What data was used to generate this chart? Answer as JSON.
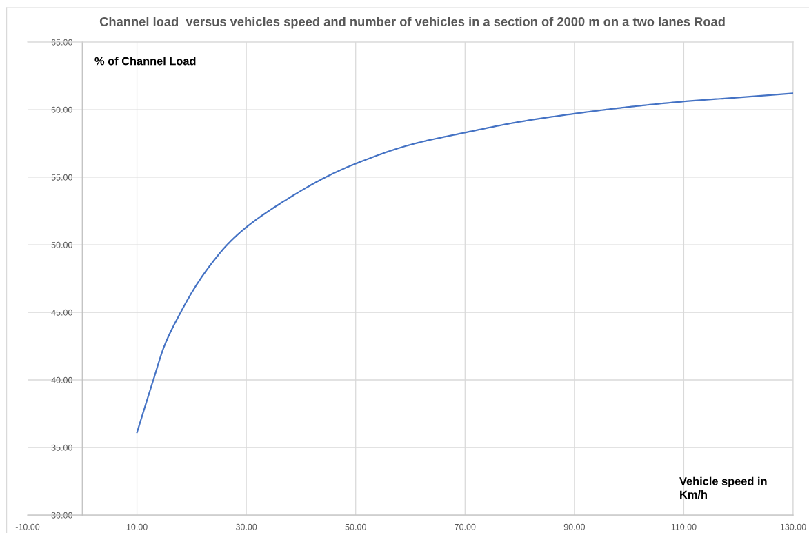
{
  "chart_data": {
    "type": "line",
    "title": "Channel load  versus vehicles speed and number of vehicles in a section of 2000 m on a two lanes Road",
    "xlabel": "Vehicle speed in\nKm/h",
    "ylabel": "% of Channel Load",
    "x": [
      10,
      13,
      15,
      18,
      21,
      24,
      26.5,
      30,
      36,
      45,
      50,
      60,
      70,
      80,
      90,
      100,
      110,
      120,
      130
    ],
    "series": [
      {
        "color": "#4472c4",
        "values": [
          36.1,
          40.0,
          42.5,
          45.0,
          47.1,
          48.8,
          50.0,
          51.3,
          53.0,
          55.1,
          56.0,
          57.4,
          58.3,
          59.1,
          59.7,
          60.2,
          60.6,
          60.9,
          61.2
        ]
      }
    ],
    "xlim": [
      -10,
      130
    ],
    "ylim": [
      30,
      65
    ],
    "xticks": [
      {
        "value": -10,
        "label": "-10.00"
      },
      {
        "value": 10,
        "label": "10.00"
      },
      {
        "value": 30,
        "label": "30.00"
      },
      {
        "value": 50,
        "label": "50.00"
      },
      {
        "value": 70,
        "label": "70.00"
      },
      {
        "value": 90,
        "label": "90.00"
      },
      {
        "value": 110,
        "label": "110.00"
      },
      {
        "value": 130,
        "label": "130.00"
      }
    ],
    "yticks": [
      {
        "value": 30,
        "label": "30.00"
      },
      {
        "value": 35,
        "label": "35.00"
      },
      {
        "value": 40,
        "label": "40.00"
      },
      {
        "value": 45,
        "label": "45.00"
      },
      {
        "value": 50,
        "label": "50.00"
      },
      {
        "value": 55,
        "label": "55.00"
      },
      {
        "value": 60,
        "label": "60.00"
      },
      {
        "value": 65,
        "label": "65.00"
      }
    ],
    "grid": true
  }
}
